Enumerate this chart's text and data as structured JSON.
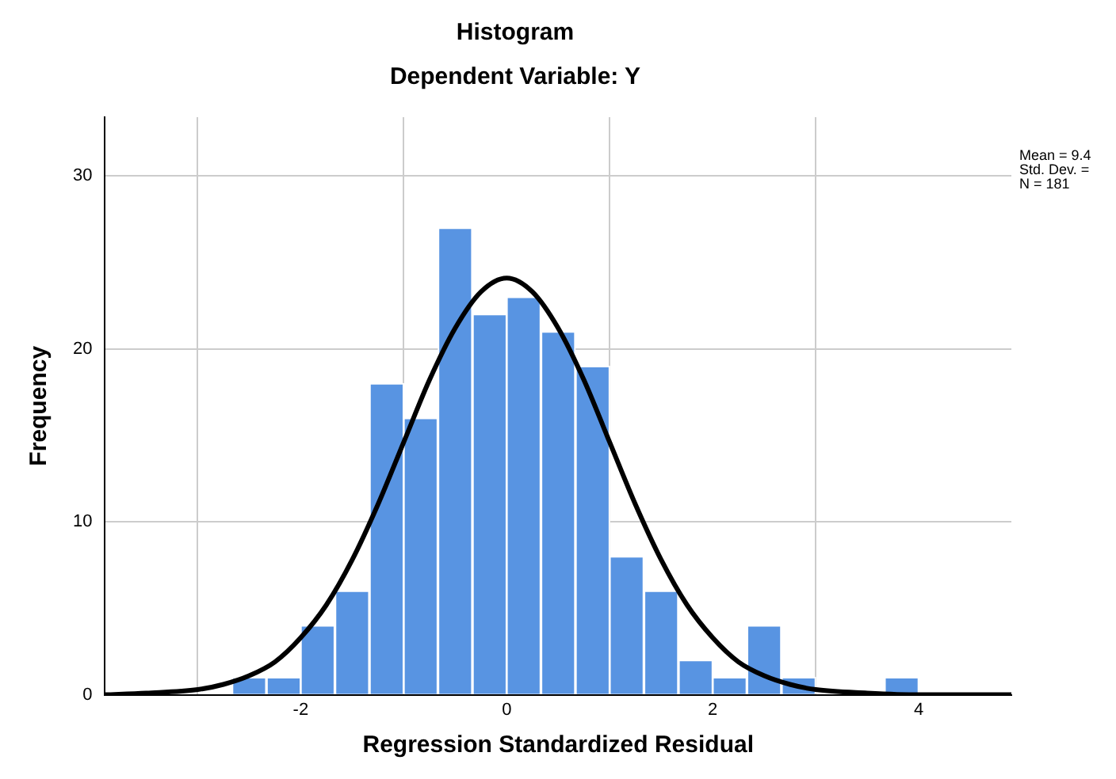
{
  "chart_data": {
    "type": "histogram",
    "title": "Histogram",
    "subtitle": "Dependent Variable: Y",
    "xlabel": "Regression Standardized Residual",
    "ylabel": "Frequency",
    "bins": [
      -2.67,
      -2.33,
      -2,
      -1.67,
      -1.33,
      -1,
      -0.67,
      -0.33,
      0,
      0.33,
      0.67,
      1,
      1.33,
      1.67,
      2,
      2.33,
      2.67,
      3,
      3.33,
      3.67,
      4
    ],
    "values": [
      1,
      1,
      4,
      6,
      18,
      16,
      27,
      22,
      23,
      21,
      19,
      8,
      6,
      2,
      1,
      4,
      1,
      0,
      0,
      1
    ],
    "color": "#5894e2",
    "series": [
      {
        "type": "line",
        "color": "#000000",
        "x": [
          -3.9,
          -3.5,
          -3,
          -2.75,
          -2.5,
          -2.25,
          -2,
          -1.75,
          -1.5,
          -1.25,
          -1,
          -0.75,
          -0.5,
          -0.25,
          0,
          0.25,
          0.5,
          0.75,
          1,
          1.25,
          1.5,
          1.75,
          2,
          2.25,
          2.5,
          2.75,
          3,
          3.5,
          4,
          4.9
        ],
        "values": [
          0,
          0.1,
          0.3,
          0.6,
          1.1,
          1.9,
          3.3,
          5.2,
          7.8,
          11,
          14.6,
          18.2,
          21.2,
          23.3,
          24.1,
          23.3,
          21.2,
          18.2,
          14.6,
          11,
          7.8,
          5.2,
          3.3,
          1.9,
          1.1,
          0.6,
          0.3,
          0.1,
          0,
          0
        ]
      }
    ],
    "xlim": [
      -3.9,
      4.9
    ],
    "xticks": [
      -2,
      0,
      2,
      4
    ],
    "ylim": [
      0,
      33.4
    ],
    "yticks": [
      0,
      10,
      20,
      30
    ],
    "grid": true,
    "legend": false,
    "annotations": [
      "Mean = 9.4",
      "Std. Dev. =",
      "N = 181"
    ]
  }
}
